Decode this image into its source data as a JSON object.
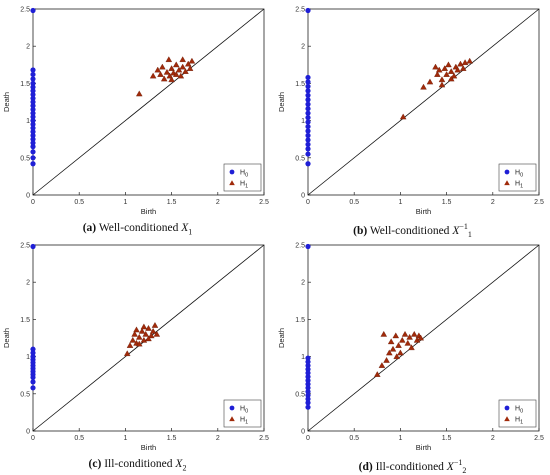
{
  "chart_data": [
    {
      "type": "scatter",
      "caption": {
        "label": "(a)",
        "text": "Well-conditioned ",
        "symbol": "X",
        "sub": "1",
        "sup": ""
      },
      "xlabel": "Birth",
      "ylabel": "Death",
      "xlim": [
        0,
        2.5
      ],
      "ylim": [
        0,
        2.5
      ],
      "xticks": [
        "0",
        "0.5",
        "1",
        "1.5",
        "2",
        "2.5"
      ],
      "yticks": [
        "0",
        "0.5",
        "1",
        "1.5",
        "2",
        "2.5"
      ],
      "diagonal": true,
      "legend_position": "bottom-right",
      "series": [
        {
          "name": "H",
          "sub": "0",
          "marker": "circle",
          "color": "#1f1fd6",
          "points": [
            [
              0,
              2.48
            ],
            [
              0,
              1.68
            ],
            [
              0,
              1.62
            ],
            [
              0,
              1.56
            ],
            [
              0,
              1.5
            ],
            [
              0,
              1.45
            ],
            [
              0,
              1.4
            ],
            [
              0,
              1.35
            ],
            [
              0,
              1.3
            ],
            [
              0,
              1.25
            ],
            [
              0,
              1.2
            ],
            [
              0,
              1.15
            ],
            [
              0,
              1.1
            ],
            [
              0,
              1.05
            ],
            [
              0,
              1.0
            ],
            [
              0,
              0.95
            ],
            [
              0,
              0.9
            ],
            [
              0,
              0.85
            ],
            [
              0,
              0.8
            ],
            [
              0,
              0.75
            ],
            [
              0,
              0.7
            ],
            [
              0,
              0.65
            ],
            [
              0,
              0.58
            ],
            [
              0,
              0.5
            ],
            [
              0,
              0.42
            ]
          ]
        },
        {
          "name": "H",
          "sub": "1",
          "marker": "triangle",
          "color": "#a02a0a",
          "points": [
            [
              1.15,
              1.36
            ],
            [
              1.3,
              1.6
            ],
            [
              1.35,
              1.68
            ],
            [
              1.38,
              1.62
            ],
            [
              1.4,
              1.72
            ],
            [
              1.42,
              1.56
            ],
            [
              1.45,
              1.65
            ],
            [
              1.48,
              1.6
            ],
            [
              1.5,
              1.7
            ],
            [
              1.5,
              1.55
            ],
            [
              1.52,
              1.64
            ],
            [
              1.55,
              1.62
            ],
            [
              1.55,
              1.75
            ],
            [
              1.58,
              1.68
            ],
            [
              1.6,
              1.6
            ],
            [
              1.62,
              1.72
            ],
            [
              1.65,
              1.66
            ],
            [
              1.68,
              1.76
            ],
            [
              1.7,
              1.7
            ],
            [
              1.72,
              1.8
            ],
            [
              1.47,
              1.82
            ],
            [
              1.62,
              1.82
            ]
          ]
        }
      ]
    },
    {
      "type": "scatter",
      "caption": {
        "label": "(b)",
        "text": "Well-conditioned ",
        "symbol": "X",
        "sub": "1",
        "sup": "−1"
      },
      "xlabel": "Birth",
      "ylabel": "Death",
      "xlim": [
        0,
        2.5
      ],
      "ylim": [
        0,
        2.5
      ],
      "xticks": [
        "0",
        "0.5",
        "1",
        "1.5",
        "2",
        "2.5"
      ],
      "yticks": [
        "0",
        "0.5",
        "1",
        "1.5",
        "2",
        "2.5"
      ],
      "diagonal": true,
      "legend_position": "bottom-right",
      "series": [
        {
          "name": "H",
          "sub": "0",
          "marker": "circle",
          "color": "#1f1fd6",
          "points": [
            [
              0,
              2.48
            ],
            [
              0,
              1.58
            ],
            [
              0,
              1.52
            ],
            [
              0,
              1.46
            ],
            [
              0,
              1.4
            ],
            [
              0,
              1.34
            ],
            [
              0,
              1.28
            ],
            [
              0,
              1.22
            ],
            [
              0,
              1.16
            ],
            [
              0,
              1.1
            ],
            [
              0,
              1.04
            ],
            [
              0,
              0.98
            ],
            [
              0,
              0.92
            ],
            [
              0,
              0.86
            ],
            [
              0,
              0.8
            ],
            [
              0,
              0.74
            ],
            [
              0,
              0.68
            ],
            [
              0,
              0.62
            ],
            [
              0,
              0.55
            ],
            [
              0,
              0.42
            ]
          ]
        },
        {
          "name": "H",
          "sub": "1",
          "marker": "triangle",
          "color": "#a02a0a",
          "points": [
            [
              1.03,
              1.05
            ],
            [
              1.25,
              1.45
            ],
            [
              1.32,
              1.52
            ],
            [
              1.38,
              1.72
            ],
            [
              1.4,
              1.62
            ],
            [
              1.42,
              1.68
            ],
            [
              1.45,
              1.55
            ],
            [
              1.48,
              1.7
            ],
            [
              1.5,
              1.62
            ],
            [
              1.52,
              1.75
            ],
            [
              1.55,
              1.66
            ],
            [
              1.58,
              1.6
            ],
            [
              1.6,
              1.72
            ],
            [
              1.62,
              1.68
            ],
            [
              1.65,
              1.76
            ],
            [
              1.68,
              1.7
            ],
            [
              1.7,
              1.78
            ],
            [
              1.75,
              1.8
            ],
            [
              1.45,
              1.48
            ],
            [
              1.55,
              1.56
            ]
          ]
        }
      ]
    },
    {
      "type": "scatter",
      "caption": {
        "label": "(c)",
        "text": "Ill-conditioned ",
        "symbol": "X",
        "sub": "2",
        "sup": ""
      },
      "xlabel": "Birth",
      "ylabel": "Death",
      "xlim": [
        0,
        2.5
      ],
      "ylim": [
        0,
        2.5
      ],
      "xticks": [
        "0",
        "0.5",
        "1",
        "1.5",
        "2",
        "2.5"
      ],
      "yticks": [
        "0",
        "0.5",
        "1",
        "1.5",
        "2",
        "2.5"
      ],
      "diagonal": true,
      "legend_position": "bottom-right",
      "series": [
        {
          "name": "H",
          "sub": "0",
          "marker": "circle",
          "color": "#1f1fd6",
          "points": [
            [
              0,
              2.48
            ],
            [
              0,
              1.1
            ],
            [
              0,
              1.05
            ],
            [
              0,
              1.0
            ],
            [
              0,
              0.96
            ],
            [
              0,
              0.92
            ],
            [
              0,
              0.88
            ],
            [
              0,
              0.84
            ],
            [
              0,
              0.8
            ],
            [
              0,
              0.76
            ],
            [
              0,
              0.72
            ],
            [
              0,
              0.66
            ],
            [
              0,
              0.58
            ]
          ]
        },
        {
          "name": "H",
          "sub": "1",
          "marker": "triangle",
          "color": "#a02a0a",
          "points": [
            [
              1.02,
              1.04
            ],
            [
              1.05,
              1.15
            ],
            [
              1.08,
              1.22
            ],
            [
              1.1,
              1.3
            ],
            [
              1.12,
              1.18
            ],
            [
              1.15,
              1.26
            ],
            [
              1.18,
              1.34
            ],
            [
              1.2,
              1.22
            ],
            [
              1.22,
              1.3
            ],
            [
              1.25,
              1.38
            ],
            [
              1.28,
              1.28
            ],
            [
              1.3,
              1.34
            ],
            [
              1.32,
              1.42
            ],
            [
              1.34,
              1.3
            ],
            [
              1.2,
              1.4
            ],
            [
              1.12,
              1.36
            ],
            [
              1.25,
              1.24
            ],
            [
              1.15,
              1.17
            ]
          ]
        }
      ]
    },
    {
      "type": "scatter",
      "caption": {
        "label": "(d)",
        "text": "Ill-conditioned ",
        "symbol": "X",
        "sub": "2",
        "sup": "−1"
      },
      "xlabel": "Birth",
      "ylabel": "Death",
      "xlim": [
        0,
        2.5
      ],
      "ylim": [
        0,
        2.5
      ],
      "xticks": [
        "0",
        "0.5",
        "1",
        "1.5",
        "2",
        "2.5"
      ],
      "yticks": [
        "0",
        "0.5",
        "1",
        "1.5",
        "2",
        "2.5"
      ],
      "diagonal": true,
      "legend_position": "bottom-right",
      "series": [
        {
          "name": "H",
          "sub": "0",
          "marker": "circle",
          "color": "#1f1fd6",
          "points": [
            [
              0,
              2.48
            ],
            [
              0,
              0.98
            ],
            [
              0,
              0.93
            ],
            [
              0,
              0.88
            ],
            [
              0,
              0.83
            ],
            [
              0,
              0.78
            ],
            [
              0,
              0.73
            ],
            [
              0,
              0.68
            ],
            [
              0,
              0.63
            ],
            [
              0,
              0.58
            ],
            [
              0,
              0.53
            ],
            [
              0,
              0.48
            ],
            [
              0,
              0.43
            ],
            [
              0,
              0.38
            ],
            [
              0,
              0.32
            ]
          ]
        },
        {
          "name": "H",
          "sub": "1",
          "marker": "triangle",
          "color": "#a02a0a",
          "points": [
            [
              0.75,
              0.76
            ],
            [
              0.8,
              0.88
            ],
            [
              0.85,
              0.95
            ],
            [
              0.88,
              1.05
            ],
            [
              0.9,
              1.2
            ],
            [
              0.92,
              1.1
            ],
            [
              0.95,
              1.28
            ],
            [
              0.98,
              1.15
            ],
            [
              1.0,
              1.05
            ],
            [
              1.02,
              1.22
            ],
            [
              1.05,
              1.3
            ],
            [
              1.08,
              1.18
            ],
            [
              1.1,
              1.26
            ],
            [
              1.12,
              1.12
            ],
            [
              1.15,
              1.3
            ],
            [
              1.18,
              1.22
            ],
            [
              1.2,
              1.28
            ],
            [
              1.22,
              1.25
            ],
            [
              0.82,
              1.3
            ],
            [
              0.96,
              1.0
            ]
          ]
        }
      ]
    }
  ]
}
